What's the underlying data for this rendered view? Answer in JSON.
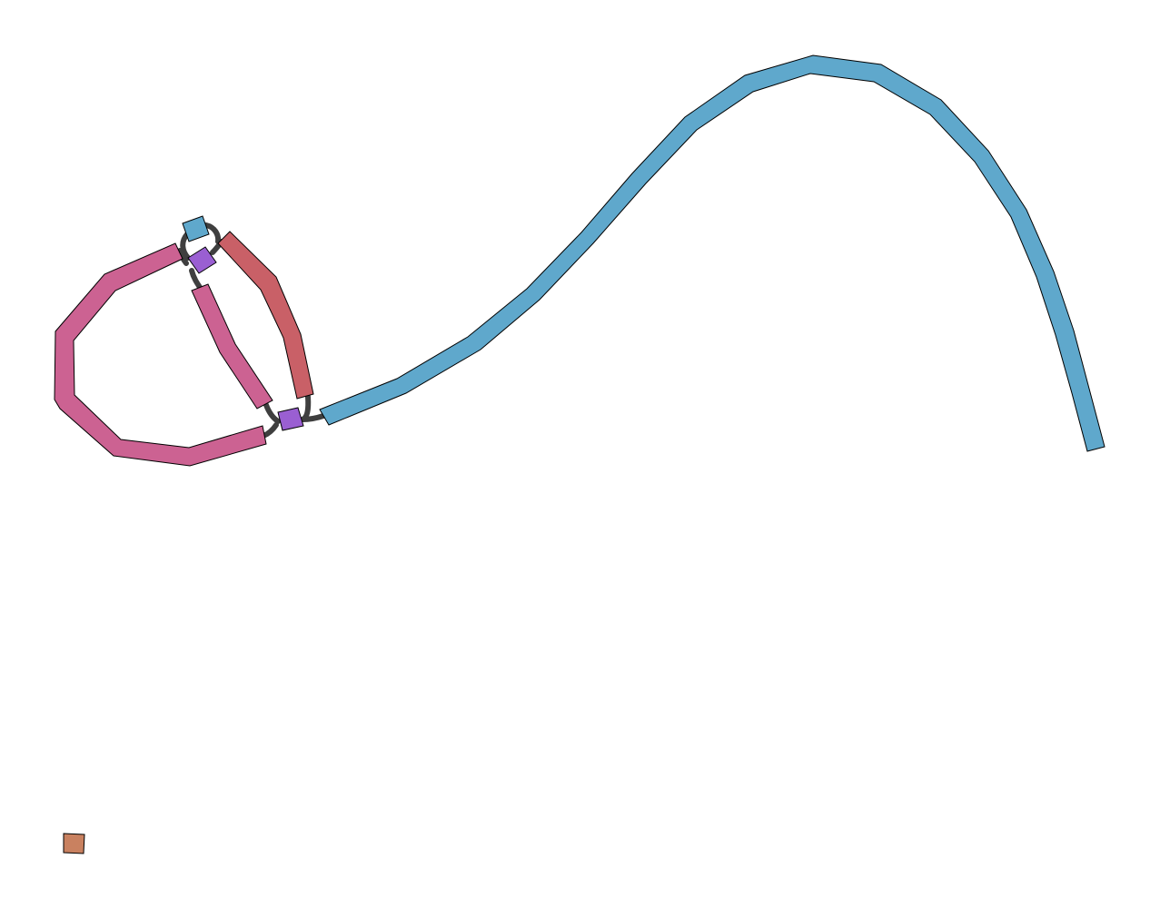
{
  "graph": {
    "colors": {
      "blue": "#5fa8cc",
      "magenta": "#cc6292",
      "red": "#c96067",
      "purple": "#9a5fd2",
      "orange": "#c98160",
      "link": "#3f3f3f",
      "outline": "#000000",
      "background": "#ffffff"
    },
    "nodes": [
      {
        "id": "long-blue-segment",
        "color": "blue"
      },
      {
        "id": "big-magenta-loop",
        "color": "magenta"
      },
      {
        "id": "inner-magenta-segment",
        "color": "magenta"
      },
      {
        "id": "red-segment",
        "color": "red"
      },
      {
        "id": "small-blue-node",
        "color": "blue"
      },
      {
        "id": "purple-node-upper",
        "color": "purple"
      },
      {
        "id": "purple-node-lower",
        "color": "purple"
      },
      {
        "id": "isolated-orange-node",
        "color": "orange"
      }
    ],
    "edges": [
      {
        "from": "small-blue-node",
        "to": "purple-node-upper"
      },
      {
        "from": "small-blue-node",
        "to": "red-segment"
      },
      {
        "from": "purple-node-upper",
        "to": "big-magenta-loop"
      },
      {
        "from": "purple-node-upper",
        "to": "inner-magenta-segment"
      },
      {
        "from": "purple-node-upper",
        "to": "red-segment"
      },
      {
        "from": "purple-node-lower",
        "to": "inner-magenta-segment"
      },
      {
        "from": "purple-node-lower",
        "to": "big-magenta-loop"
      },
      {
        "from": "purple-node-lower",
        "to": "red-segment"
      },
      {
        "from": "purple-node-lower",
        "to": "long-blue-segment"
      }
    ]
  }
}
